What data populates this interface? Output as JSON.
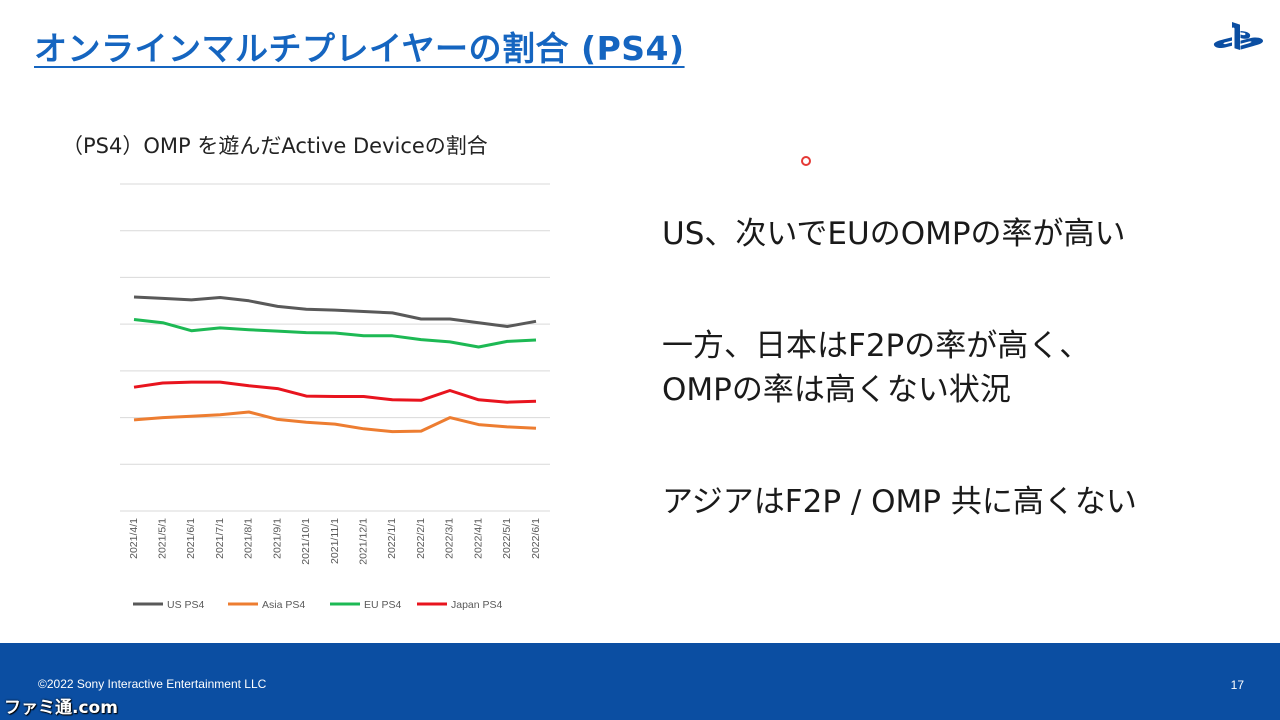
{
  "slide": {
    "title": "オンラインマルチプレイヤーの割合 (PS4)",
    "page_number": "17",
    "copyright": "©2022 Sony Interactive Entertainment LLC",
    "watermark": "ファミ通.com",
    "logo_icon": "playstation-logo-icon"
  },
  "text_panel": {
    "points": [
      "US、次いでEUのOMPの率が高い",
      "一方、日本はF2Pの率が高く、\nOMPの率は高くない状況",
      "アジアはF2P / OMP 共に高くない"
    ]
  },
  "chart_data": {
    "type": "line",
    "title": "（PS4）OMP を遊んだActive Deviceの割合",
    "xlabel": "",
    "ylabel": "",
    "x": [
      "2021/4/1",
      "2021/5/1",
      "2021/6/1",
      "2021/7/1",
      "2021/8/1",
      "2021/9/1",
      "2021/10/1",
      "2021/11/1",
      "2021/12/1",
      "2022/1/1",
      "2022/2/1",
      "2022/3/1",
      "2022/4/1",
      "2022/5/1",
      "2022/6/1"
    ],
    "ylim": [
      0,
      7
    ],
    "gridlines": 7,
    "y_tick_labels_shown": false,
    "grid": true,
    "legend_position": "bottom-left",
    "series": [
      {
        "name": "US PS4",
        "color": "#595959",
        "values": [
          4.58,
          4.55,
          4.52,
          4.57,
          4.5,
          4.38,
          4.32,
          4.3,
          4.27,
          4.24,
          4.11,
          4.11,
          4.03,
          3.95,
          4.06
        ]
      },
      {
        "name": "Asia PS4",
        "color": "#ed7d31",
        "values": [
          1.95,
          2.0,
          2.03,
          2.06,
          2.12,
          1.96,
          1.9,
          1.86,
          1.76,
          1.7,
          1.71,
          2.0,
          1.85,
          1.8,
          1.77
        ]
      },
      {
        "name": "EU PS4",
        "color": "#1db954",
        "values": [
          4.1,
          4.03,
          3.86,
          3.92,
          3.88,
          3.85,
          3.82,
          3.81,
          3.75,
          3.75,
          3.67,
          3.62,
          3.51,
          3.63,
          3.66
        ]
      },
      {
        "name": "Japan PS4",
        "color": "#e8141e",
        "values": [
          2.65,
          2.74,
          2.76,
          2.76,
          2.68,
          2.62,
          2.46,
          2.45,
          2.45,
          2.38,
          2.37,
          2.58,
          2.38,
          2.33,
          2.35
        ]
      }
    ]
  }
}
